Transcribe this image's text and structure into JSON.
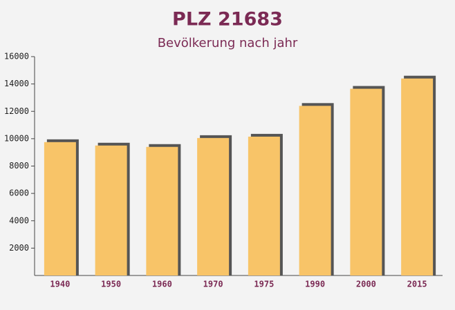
{
  "chart_data": {
    "type": "bar",
    "title": "PLZ 21683",
    "subtitle": "Bevölkerung nach jahr",
    "categories": [
      "1940",
      "1950",
      "1960",
      "1970",
      "1975",
      "1990",
      "2000",
      "2015"
    ],
    "values": [
      9750,
      9500,
      9400,
      10050,
      10150,
      12400,
      13650,
      14400
    ],
    "color": "#f8c468",
    "ylim": [
      0,
      16000
    ],
    "yticks": [
      2000,
      4000,
      6000,
      8000,
      10000,
      12000,
      14000,
      16000
    ],
    "grid": false
  }
}
